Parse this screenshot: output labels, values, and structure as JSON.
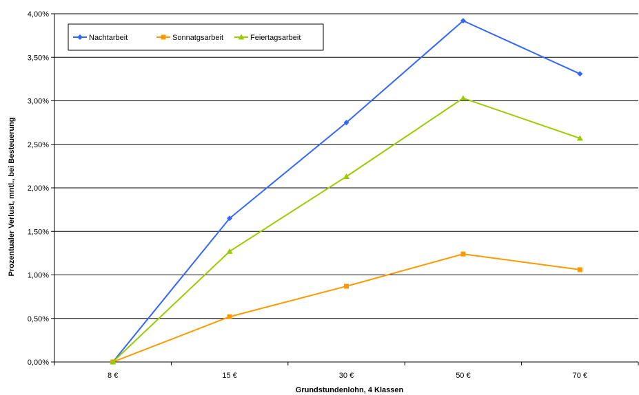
{
  "chart_data": {
    "type": "line",
    "categories": [
      "8 €",
      "15 €",
      "30 €",
      "50 €",
      "70 €"
    ],
    "xlabel": "Grundstundenlohn, 4 Klassen",
    "ylabel": "Prozentualer Verlust, mntl., bei Besteuerung",
    "ylim": [
      0,
      0.04
    ],
    "yticks": [
      "0,00%",
      "0,50%",
      "1,00%",
      "1,50%",
      "2,00%",
      "2,50%",
      "3,00%",
      "3,50%",
      "4,00%"
    ],
    "grid": "horizontal",
    "legend_position": "top-left",
    "series": [
      {
        "name": "Nachtarbeit",
        "color": "#3366ff",
        "marker": "diamond",
        "values": [
          0.0,
          0.0165,
          0.0275,
          0.0392,
          0.0331
        ]
      },
      {
        "name": "Sonnatgsarbeit",
        "color": "#ff9900",
        "marker": "square",
        "values": [
          0.0,
          0.0052,
          0.0087,
          0.0124,
          0.0106
        ]
      },
      {
        "name": "Feiertagsarbeit",
        "color": "#99cc00",
        "marker": "triangle",
        "values": [
          0.0,
          0.0127,
          0.0213,
          0.0303,
          0.0257
        ]
      }
    ]
  }
}
